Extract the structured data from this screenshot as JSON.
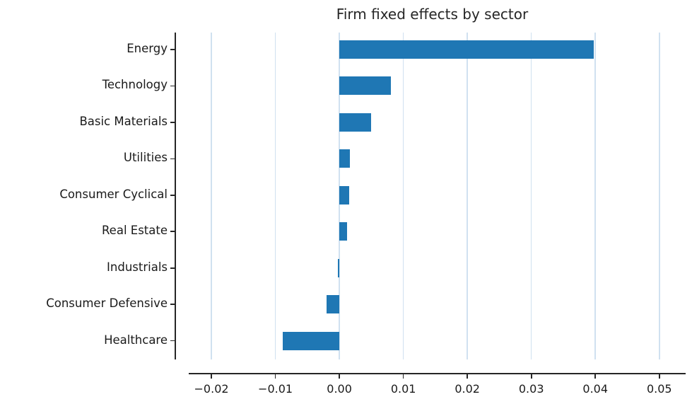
{
  "chart_data": {
    "type": "bar",
    "orientation": "horizontal",
    "title": "Firm fixed effects by sector",
    "xlabel": "",
    "ylabel": "",
    "categories": [
      "Energy",
      "Technology",
      "Basic Materials",
      "Utilities",
      "Consumer Cyclical",
      "Real Estate",
      "Industrials",
      "Consumer Defensive",
      "Healthcare"
    ],
    "values": [
      0.0398,
      0.008,
      0.005,
      0.0016,
      0.0015,
      0.0012,
      -0.0002,
      -0.002,
      -0.0089
    ],
    "x_ticks": [
      -0.02,
      -0.01,
      0.0,
      0.01,
      0.02,
      0.03,
      0.04,
      0.05
    ],
    "x_tick_labels": [
      "−0.02",
      "−0.01",
      "0.00",
      "0.01",
      "0.02",
      "0.03",
      "0.04",
      "0.05"
    ],
    "xlim": [
      -0.0251,
      0.0541
    ],
    "grid": "vertical",
    "legend": "none",
    "bar_color": "#1f77b4",
    "grid_color": "#d0e1f0",
    "axis_color": "#262626",
    "background_color": "#ffffff"
  }
}
